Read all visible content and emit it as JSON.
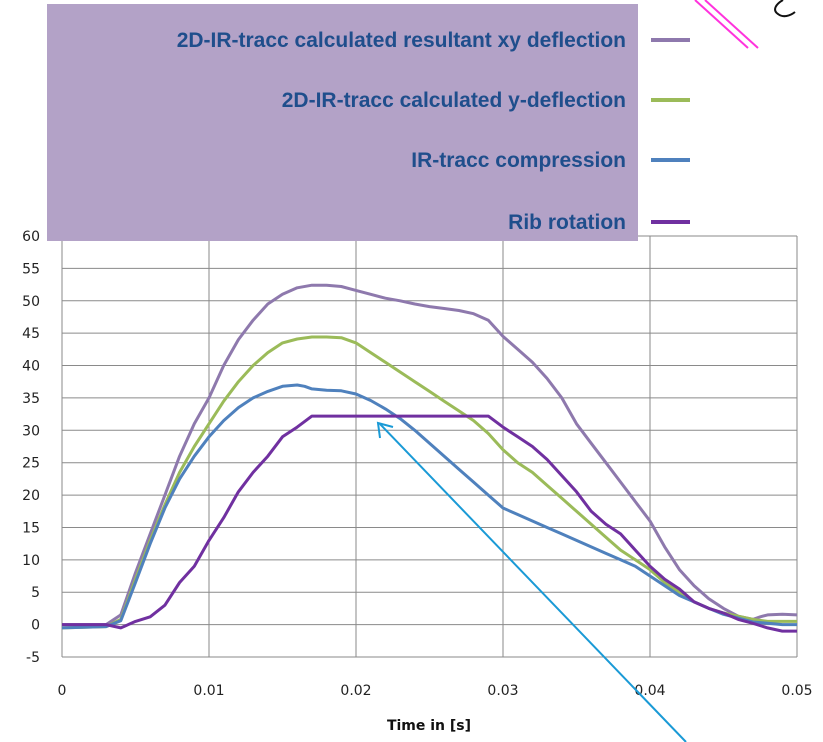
{
  "chart_data": {
    "type": "line",
    "title": "",
    "xlabel": "Time in [s]",
    "ylabel": "",
    "xlim": [
      0,
      0.05
    ],
    "ylim": [
      -5,
      60
    ],
    "x_ticks": [
      0,
      0.01,
      0.02,
      0.03,
      0.04,
      0.05
    ],
    "x_tick_labels": [
      "0",
      "0.01",
      "0.02",
      "0.03",
      "0.04",
      "0.05"
    ],
    "y_ticks": [
      -5,
      0,
      5,
      10,
      15,
      20,
      25,
      30,
      35,
      40,
      45,
      50,
      55,
      60
    ],
    "y_tick_labels": [
      "-5",
      "0",
      "5",
      "10",
      "15",
      "20",
      "25",
      "30",
      "35",
      "40",
      "45",
      "50",
      "55",
      "60"
    ],
    "grid": "major",
    "legend_position": "top",
    "series": [
      {
        "name": "2D-IR-tracc calculated resultant xy deflection",
        "color": "#8e79ad",
        "points": [
          [
            0,
            0
          ],
          [
            0.003,
            0
          ],
          [
            0.004,
            1.5
          ],
          [
            0.005,
            8
          ],
          [
            0.006,
            14
          ],
          [
            0.007,
            20
          ],
          [
            0.008,
            26
          ],
          [
            0.009,
            31
          ],
          [
            0.01,
            35
          ],
          [
            0.011,
            40
          ],
          [
            0.012,
            44
          ],
          [
            0.013,
            47
          ],
          [
            0.014,
            49.5
          ],
          [
            0.015,
            51
          ],
          [
            0.016,
            52
          ],
          [
            0.017,
            52.4
          ],
          [
            0.018,
            52.4
          ],
          [
            0.019,
            52.2
          ],
          [
            0.02,
            51.6
          ],
          [
            0.021,
            51
          ],
          [
            0.022,
            50.4
          ],
          [
            0.023,
            50
          ],
          [
            0.024,
            49.5
          ],
          [
            0.025,
            49.1
          ],
          [
            0.026,
            48.8
          ],
          [
            0.027,
            48.5
          ],
          [
            0.028,
            48
          ],
          [
            0.029,
            47
          ],
          [
            0.03,
            44.5
          ],
          [
            0.031,
            42.5
          ],
          [
            0.032,
            40.5
          ],
          [
            0.033,
            38
          ],
          [
            0.034,
            35
          ],
          [
            0.035,
            31
          ],
          [
            0.036,
            28
          ],
          [
            0.037,
            25
          ],
          [
            0.038,
            22
          ],
          [
            0.039,
            19
          ],
          [
            0.04,
            16
          ],
          [
            0.041,
            12
          ],
          [
            0.042,
            8.5
          ],
          [
            0.043,
            6
          ],
          [
            0.044,
            4
          ],
          [
            0.045,
            2.5
          ],
          [
            0.046,
            1.3
          ],
          [
            0.047,
            0.8
          ],
          [
            0.0475,
            1.2
          ],
          [
            0.048,
            1.5
          ],
          [
            0.049,
            1.6
          ],
          [
            0.05,
            1.5
          ]
        ]
      },
      {
        "name": "2D-IR-tracc calculated y-deflection",
        "color": "#9bbb59",
        "points": [
          [
            0,
            -0.5
          ],
          [
            0.003,
            -0.3
          ],
          [
            0.004,
            0.8
          ],
          [
            0.005,
            7
          ],
          [
            0.006,
            13
          ],
          [
            0.007,
            18.5
          ],
          [
            0.008,
            23.5
          ],
          [
            0.009,
            27.5
          ],
          [
            0.01,
            31
          ],
          [
            0.011,
            34.5
          ],
          [
            0.012,
            37.5
          ],
          [
            0.013,
            40
          ],
          [
            0.014,
            42
          ],
          [
            0.015,
            43.5
          ],
          [
            0.016,
            44.1
          ],
          [
            0.017,
            44.4
          ],
          [
            0.018,
            44.4
          ],
          [
            0.019,
            44.3
          ],
          [
            0.02,
            43.5
          ],
          [
            0.021,
            42
          ],
          [
            0.022,
            40.5
          ],
          [
            0.023,
            39
          ],
          [
            0.024,
            37.5
          ],
          [
            0.025,
            36
          ],
          [
            0.026,
            34.5
          ],
          [
            0.027,
            33
          ],
          [
            0.028,
            31.5
          ],
          [
            0.029,
            29.5
          ],
          [
            0.03,
            27
          ],
          [
            0.031,
            25
          ],
          [
            0.032,
            23.5
          ],
          [
            0.033,
            21.5
          ],
          [
            0.034,
            19.5
          ],
          [
            0.035,
            17.5
          ],
          [
            0.036,
            15.5
          ],
          [
            0.037,
            13.5
          ],
          [
            0.038,
            11.5
          ],
          [
            0.039,
            10
          ],
          [
            0.04,
            8.5
          ],
          [
            0.041,
            6.5
          ],
          [
            0.042,
            5
          ],
          [
            0.043,
            3.5
          ],
          [
            0.044,
            2.5
          ],
          [
            0.045,
            1.8
          ],
          [
            0.046,
            1.3
          ],
          [
            0.047,
            0.8
          ],
          [
            0.048,
            0.5
          ],
          [
            0.049,
            0.5
          ],
          [
            0.05,
            0.5
          ]
        ]
      },
      {
        "name": "IR-tracc compression",
        "color": "#4f81bd",
        "points": [
          [
            0,
            -0.5
          ],
          [
            0.003,
            -0.3
          ],
          [
            0.004,
            0.6
          ],
          [
            0.005,
            6.5
          ],
          [
            0.006,
            12.5
          ],
          [
            0.007,
            18
          ],
          [
            0.008,
            22.5
          ],
          [
            0.009,
            26
          ],
          [
            0.01,
            29
          ],
          [
            0.011,
            31.5
          ],
          [
            0.012,
            33.5
          ],
          [
            0.013,
            35
          ],
          [
            0.014,
            36
          ],
          [
            0.015,
            36.8
          ],
          [
            0.016,
            37
          ],
          [
            0.0165,
            36.8
          ],
          [
            0.017,
            36.4
          ],
          [
            0.018,
            36.2
          ],
          [
            0.019,
            36.1
          ],
          [
            0.02,
            35.6
          ],
          [
            0.021,
            34.6
          ],
          [
            0.022,
            33.3
          ],
          [
            0.023,
            31.8
          ],
          [
            0.024,
            30
          ],
          [
            0.025,
            28
          ],
          [
            0.026,
            26
          ],
          [
            0.027,
            24
          ],
          [
            0.028,
            22
          ],
          [
            0.029,
            20
          ],
          [
            0.03,
            18
          ],
          [
            0.031,
            17
          ],
          [
            0.032,
            16
          ],
          [
            0.033,
            15
          ],
          [
            0.034,
            14
          ],
          [
            0.035,
            13
          ],
          [
            0.036,
            12
          ],
          [
            0.037,
            11
          ],
          [
            0.038,
            10
          ],
          [
            0.039,
            9
          ],
          [
            0.04,
            7.5
          ],
          [
            0.041,
            6
          ],
          [
            0.042,
            4.5
          ],
          [
            0.043,
            3.5
          ],
          [
            0.044,
            2.5
          ],
          [
            0.045,
            1.6
          ],
          [
            0.046,
            1
          ],
          [
            0.047,
            0.4
          ],
          [
            0.048,
            0.2
          ],
          [
            0.049,
            0
          ],
          [
            0.05,
            0
          ]
        ]
      },
      {
        "name": "Rib rotation",
        "color": "#7030a0",
        "points": [
          [
            0,
            0
          ],
          [
            0.003,
            0
          ],
          [
            0.004,
            -0.5
          ],
          [
            0.005,
            0.5
          ],
          [
            0.006,
            1.2
          ],
          [
            0.007,
            3
          ],
          [
            0.008,
            6.5
          ],
          [
            0.009,
            9
          ],
          [
            0.01,
            13
          ],
          [
            0.011,
            16.5
          ],
          [
            0.012,
            20.5
          ],
          [
            0.013,
            23.5
          ],
          [
            0.014,
            26
          ],
          [
            0.015,
            29
          ],
          [
            0.016,
            30.5
          ],
          [
            0.017,
            32.2
          ],
          [
            0.018,
            32.2
          ],
          [
            0.019,
            32.2
          ],
          [
            0.02,
            32.2
          ],
          [
            0.021,
            32.2
          ],
          [
            0.022,
            32.2
          ],
          [
            0.023,
            32.2
          ],
          [
            0.024,
            32.2
          ],
          [
            0.025,
            32.2
          ],
          [
            0.026,
            32.2
          ],
          [
            0.027,
            32.2
          ],
          [
            0.028,
            32.2
          ],
          [
            0.029,
            32.2
          ],
          [
            0.03,
            30.5
          ],
          [
            0.031,
            29
          ],
          [
            0.032,
            27.5
          ],
          [
            0.033,
            25.5
          ],
          [
            0.034,
            23
          ],
          [
            0.035,
            20.5
          ],
          [
            0.036,
            17.5
          ],
          [
            0.037,
            15.5
          ],
          [
            0.038,
            14
          ],
          [
            0.039,
            11.5
          ],
          [
            0.04,
            9
          ],
          [
            0.041,
            7
          ],
          [
            0.042,
            5.5
          ],
          [
            0.043,
            3.5
          ],
          [
            0.044,
            2.5
          ],
          [
            0.045,
            1.8
          ],
          [
            0.046,
            0.8
          ],
          [
            0.047,
            0.2
          ],
          [
            0.048,
            -0.5
          ],
          [
            0.049,
            -1
          ],
          [
            0.05,
            -1
          ]
        ]
      }
    ]
  },
  "annotation": {
    "arrow_color": "#1a9ad6",
    "pink_stroke_color": "#ff33dd",
    "legend_background": "#b3a2c7"
  }
}
